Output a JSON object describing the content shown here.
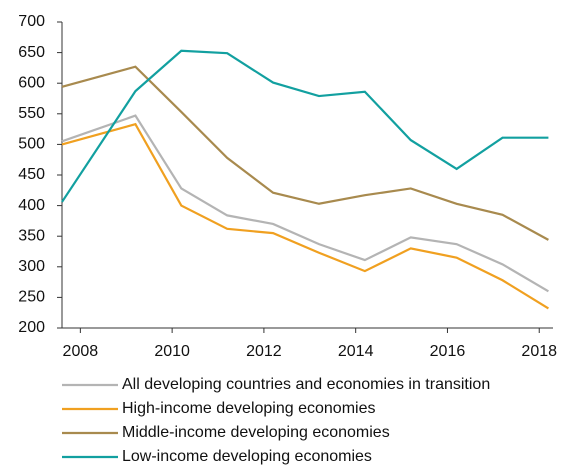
{
  "chart_data": {
    "type": "line",
    "x": [
      2007.6,
      2009.2,
      2010.2,
      2011.2,
      2012.2,
      2013.2,
      2014.2,
      2015.2,
      2016.2,
      2017.2,
      2018.2
    ],
    "series": [
      {
        "name": "All developing countries and economies in transition",
        "color": "#b4b4b4",
        "values": [
          505,
          547,
          428,
          384,
          370,
          337,
          311,
          348,
          337,
          304,
          260
        ]
      },
      {
        "name": "High-income developing economies",
        "color": "#f0a020",
        "values": [
          500,
          533,
          400,
          362,
          355,
          323,
          293,
          330,
          315,
          278,
          232
        ]
      },
      {
        "name": "Middle-income developing economies",
        "color": "#a88a4e",
        "values": [
          594,
          627,
          553,
          478,
          421,
          403,
          417,
          428,
          403,
          385,
          344
        ]
      },
      {
        "name": "Low-income developing economies",
        "color": "#12a0a0",
        "values": [
          406,
          587,
          653,
          649,
          601,
          579,
          586,
          507,
          460,
          511,
          511
        ]
      }
    ],
    "xlim": [
      2007.6,
      2018.3
    ],
    "xticks": [
      2008,
      2010,
      2012,
      2014,
      2016,
      2018
    ],
    "ylim": [
      200,
      700
    ],
    "yticks": [
      200,
      250,
      300,
      350,
      400,
      450,
      500,
      550,
      600,
      650,
      700
    ],
    "legend": "bottom"
  }
}
